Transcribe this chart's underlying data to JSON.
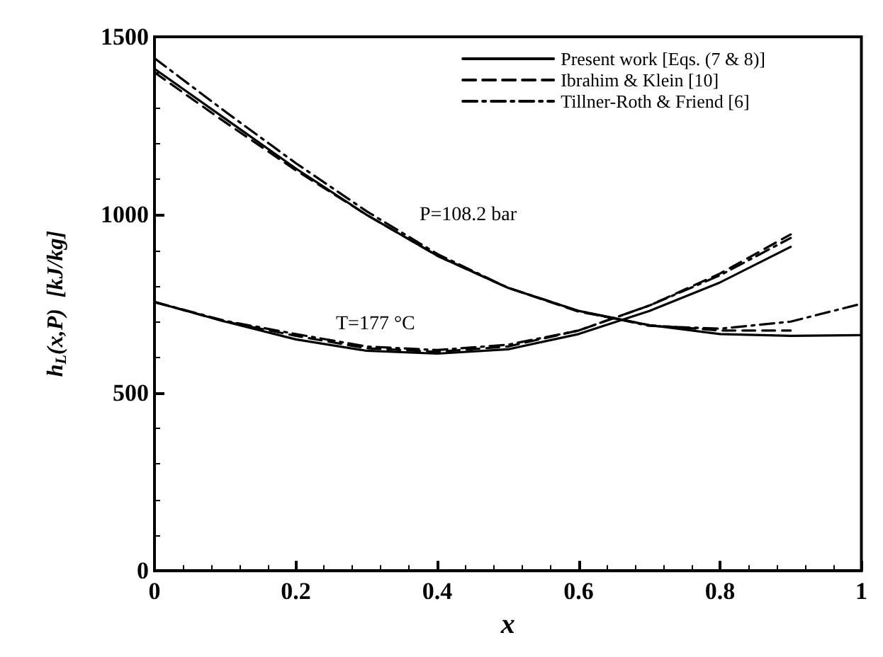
{
  "chart_data": {
    "type": "line",
    "xlabel": "x",
    "ylabel": "h$_{L}$(x,P)  [kJ/kg]",
    "xlim": [
      0,
      1
    ],
    "xticks": [
      0,
      0.2,
      0.4,
      0.6,
      0.8,
      1
    ],
    "ylim": [
      0,
      1500
    ],
    "yticks": [
      0,
      500,
      1000,
      1500
    ],
    "grid": false,
    "legend": "top right",
    "marker": "none",
    "annotations": [
      "P=108.2 bar",
      "T=177 °C"
    ],
    "x": [
      0,
      0.1,
      0.2,
      0.3,
      0.4,
      0.5,
      0.6,
      0.7,
      0.8,
      0.9,
      1
    ],
    "series": [
      {
        "name": "Present work [Eqs. (7 & 8)]",
        "color": "#000000",
        "line_style": "solid",
        "values": [
          1410,
          1270,
          1130,
          1000,
          885,
          795,
          730,
          690,
          665,
          660,
          662
        ]
      },
      {
        "name": "Ibrahim & Klein [10]",
        "color": "#000000",
        "line_style": "dashed",
        "values": [
          1400,
          1260,
          1125,
          1000,
          885,
          795,
          728,
          690,
          675,
          675,
          null
        ]
      },
      {
        "name": "Tillner-Roth & Friend [6]",
        "color": "#000000",
        "line_style": "dashdot",
        "values": [
          1440,
          1290,
          1145,
          1010,
          890,
          795,
          730,
          688,
          680,
          700,
          750
        ]
      },
      {
        "color": "#000000",
        "line_style": "solid",
        "values": [
          755,
          700,
          650,
          618,
          610,
          622,
          665,
          730,
          810,
          910,
          null
        ]
      },
      {
        "color": "#000000",
        "line_style": "dashed",
        "values": [
          755,
          700,
          660,
          625,
          615,
          630,
          675,
          745,
          835,
          945,
          null
        ]
      },
      {
        "color": "#000000",
        "line_style": "dashdot",
        "values": [
          755,
          702,
          665,
          630,
          620,
          635,
          675,
          745,
          830,
          935,
          null
        ]
      }
    ]
  }
}
